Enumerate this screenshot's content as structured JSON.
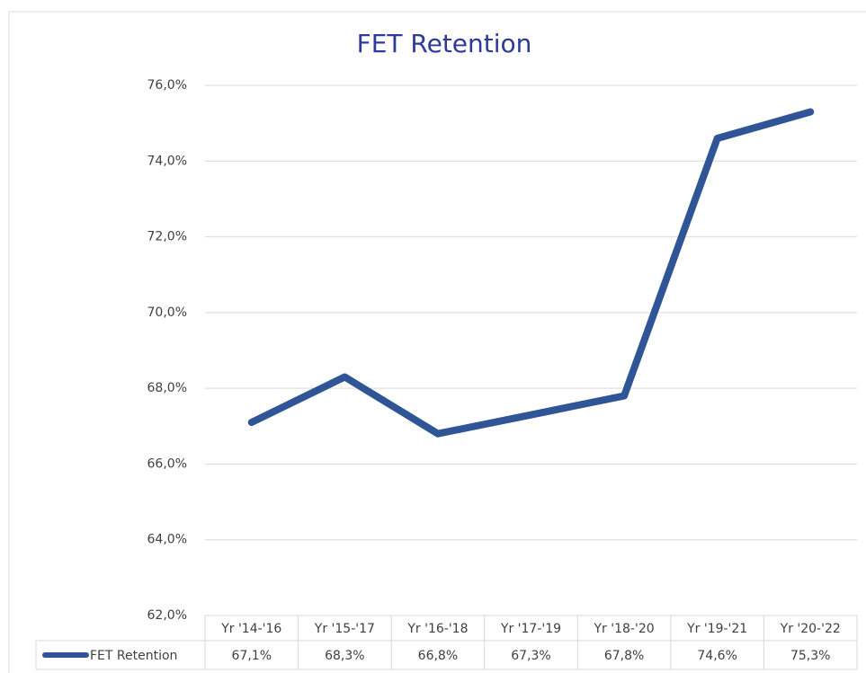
{
  "chart_data": {
    "type": "line",
    "title": "FET Retention",
    "categories": [
      "Yr '14-'16",
      "Yr '15-'17",
      "Yr '16-'18",
      "Yr '17-'19",
      "Yr '18-'20",
      "Yr '19-'21",
      "Yr '20-'22"
    ],
    "series": [
      {
        "name": "FET Retention",
        "color": "#2f5597",
        "values": [
          67.1,
          68.3,
          66.8,
          67.3,
          67.8,
          74.6,
          75.3
        ],
        "value_labels": [
          "67,1%",
          "68,3%",
          "66,8%",
          "67,3%",
          "67,8%",
          "74,6%",
          "75,3%"
        ]
      }
    ],
    "ylim": [
      62,
      76
    ],
    "yticks": [
      {
        "value": 62,
        "label": "62,0%"
      },
      {
        "value": 64,
        "label": "64,0%"
      },
      {
        "value": 66,
        "label": "66,0%"
      },
      {
        "value": 68,
        "label": "68,0%"
      },
      {
        "value": 70,
        "label": "70,0%"
      },
      {
        "value": 72,
        "label": "72,0%"
      },
      {
        "value": 74,
        "label": "74,0%"
      },
      {
        "value": 76,
        "label": "76,0%"
      }
    ],
    "grid": true
  }
}
